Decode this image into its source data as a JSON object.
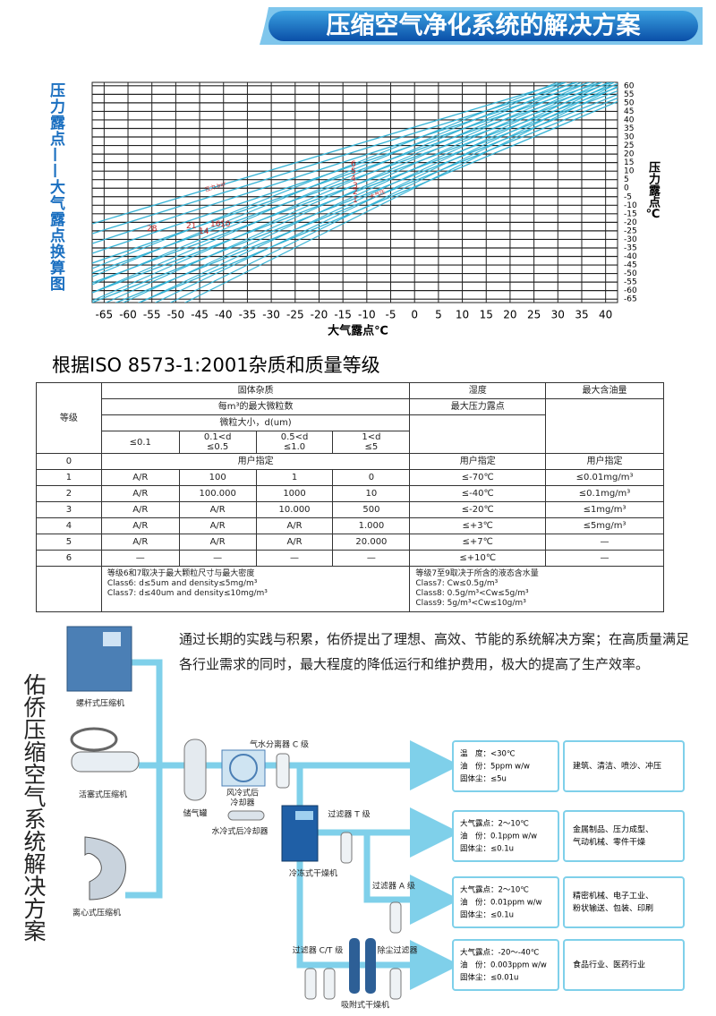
{
  "header": {
    "title": "压缩空气净化系统的解决方案"
  },
  "conversion_chart": {
    "title": "压力露点——大气露点换算图",
    "y_label": "压力露点℃",
    "x_label": "大气露点℃",
    "xlim": [
      -67.5,
      42.5
    ],
    "ylim": [
      -67,
      62
    ],
    "xticks": [
      -65,
      -60,
      -55,
      -50,
      -45,
      -40,
      -35,
      -30,
      -25,
      -20,
      -15,
      -10,
      -5,
      0,
      5,
      10,
      15,
      20,
      25,
      30,
      35,
      40
    ],
    "yticks": [
      60,
      55,
      50,
      45,
      40,
      35,
      30,
      25,
      20,
      15,
      10,
      5,
      0,
      -5,
      -10,
      -15,
      -20,
      -25,
      -30,
      -35,
      -40,
      -45,
      -50,
      -55,
      -60,
      -65
    ],
    "annotations": [
      "压力 bar",
      "28",
      "21",
      "16",
      "14",
      "10",
      "6",
      "5",
      "4",
      "3",
      "2",
      "1",
      "大气压"
    ]
  },
  "iso_table": {
    "title": "根据ISO 8573-1:2001杂质和质量等级",
    "header": {
      "grade": "等级",
      "solid": "固体杂质",
      "humidity": "湿度",
      "oil": "最大含油量",
      "particle_count": "每m³的最大微粒数",
      "dew_point": "最大压力露点",
      "particle_size": "微粒大小，d(um)",
      "size_classes": [
        [
          "≤0.1"
        ],
        [
          "0.1<d",
          "≤0.5"
        ],
        [
          "0.5<d",
          "≤1.0"
        ],
        [
          "1<d",
          "≤5"
        ]
      ]
    },
    "row0": [
      "0",
      "用户指定",
      "用户指定",
      "用户指定"
    ],
    "rows": [
      [
        "1",
        "A/R",
        "100",
        "1",
        "0",
        "≤-70℃",
        "≤0.01mg/m³"
      ],
      [
        "2",
        "A/R",
        "100.000",
        "1000",
        "10",
        "≤-40℃",
        "≤0.1mg/m³"
      ],
      [
        "3",
        "A/R",
        "A/R",
        "10.000",
        "500",
        "≤-20℃",
        "≤1mg/m³"
      ],
      [
        "4",
        "A/R",
        "A/R",
        "A/R",
        "1.000",
        "≤+3℃",
        "≤5mg/m³"
      ],
      [
        "5",
        "A/R",
        "A/R",
        "A/R",
        "20.000",
        "≤+7℃",
        "—"
      ],
      [
        "6",
        "—",
        "—",
        "—",
        "—",
        "≤+10℃",
        "—"
      ]
    ],
    "notes_left": [
      "等级6和7取决于最大颗粒尺寸与最大密度",
      "Class6: d≤5um and density≤5mg/m³",
      "Class7: d≤40um and density≤10mg/m³"
    ],
    "notes_right": [
      "等级7至9取决于所含的液态含水量",
      "Class7: Cw≤0.5g/m³",
      "Class8: 0.5g/m³<Cw≤5g/m³",
      "Class9: 5g/m³<Cw≤10g/m³"
    ]
  },
  "intro": "通过长期的实践与积累，佑侨提出了理想、高效、节能的系统解决方案；在高质量满足各行业需求的同时，最大程度的降低运行和维护费用，极大的提高了生产效率。",
  "system": {
    "title": "佑侨压缩空气系统解决方案",
    "labels": {
      "screw": "螺杆式压缩机",
      "piston": "活塞式压缩机",
      "centrifugal": "离心式压缩机",
      "tank": "储气罐",
      "air_cooler": [
        "风冷式后",
        "冷却器"
      ],
      "water_cooler": "水冷式后冷却器",
      "separator": "气水分离器 C 级",
      "filter_t": "过滤器 T 级",
      "refrigerated_dryer": "冷冻式干燥机",
      "filter_a": "过滤器 A 级",
      "filter_ct": "过滤器 C/T 级",
      "dust_filter": "除尘过滤器",
      "adsorption_dryer": "吸附式干燥机"
    },
    "outputs": [
      {
        "specs": [
          "温　度：<30℃",
          "油　份：5ppm w/w",
          "固体尘：≤5u"
        ],
        "applications": [
          "建筑、清洁、喷沙、冲压"
        ]
      },
      {
        "specs": [
          "大气露点：2～10℃",
          "油　份：0.1ppm w/w",
          "固体尘：≤0.1u"
        ],
        "applications": [
          "金属制品、压力成型、",
          "气动机械、零件干燥"
        ]
      },
      {
        "specs": [
          "大气露点：2～10℃",
          "油　份：0.01ppm w/w",
          "固体尘：≤0.1u"
        ],
        "applications": [
          "精密机械、电子工业、",
          "粉状输送、包装、印刷"
        ]
      },
      {
        "specs": [
          "大气露点：-20～-40℃",
          "油　份：0.003ppm w/w",
          "固体尘：≤0.01u"
        ],
        "applications": [
          "食品行业、医药行业"
        ]
      }
    ]
  }
}
